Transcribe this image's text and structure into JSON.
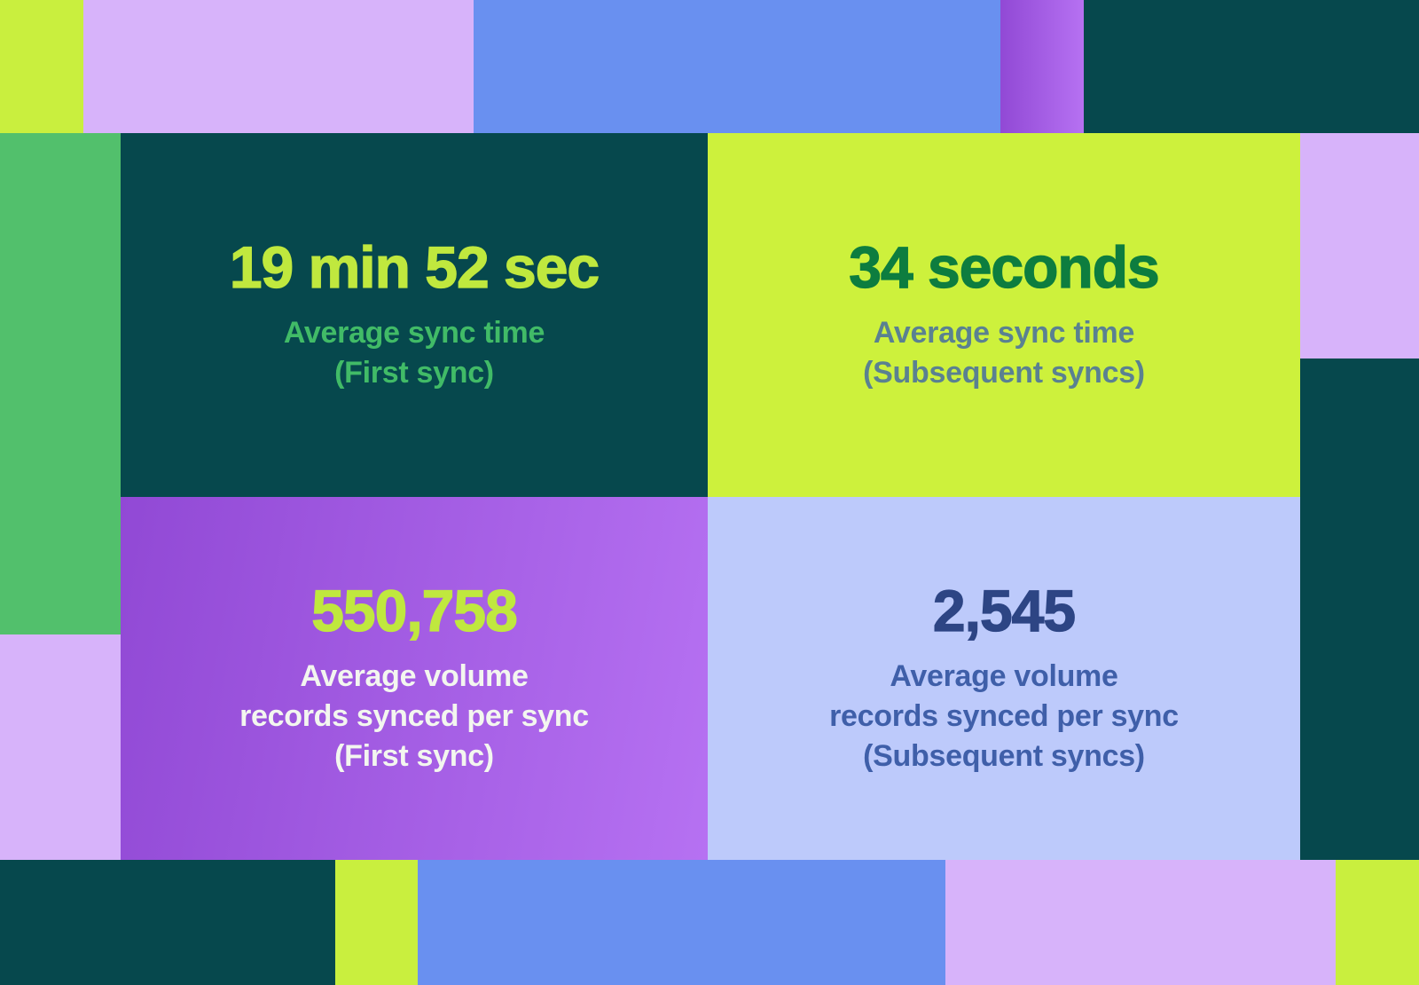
{
  "palette": {
    "lime": "#c9ef3e",
    "lime_card": "#cdf13c",
    "lavender": "#d7b3fa",
    "blue": "#6990f0",
    "dark_teal": "#06484d",
    "green": "#52c06c",
    "periwinkle": "#bdcafb",
    "purple_grad_start": "#9149d5",
    "purple_grad_end": "#b671f2",
    "value_lime": "#c0e83e",
    "value_dark_green": "#0d7d3f",
    "value_navy": "#2d4584",
    "label_green": "#41bb67",
    "label_slate": "#5a8191",
    "label_white": "#f3f6ef",
    "label_blue": "#3f5fa9"
  },
  "stats": {
    "first_sync_time": {
      "value": "19 min 52 sec",
      "label_lines": [
        "Average sync time",
        "(First sync)"
      ]
    },
    "subsequent_sync_time": {
      "value": "34 seconds",
      "label_lines": [
        "Average sync time",
        "(Subsequent syncs)"
      ]
    },
    "first_sync_volume": {
      "value": "550,758",
      "label_lines": [
        "Average volume",
        "records synced per sync",
        "(First sync)"
      ]
    },
    "subsequent_sync_volume": {
      "value": "2,545",
      "label_lines": [
        "Average volume",
        "records synced per sync",
        "(Subsequent syncs)"
      ]
    }
  },
  "chart_data": {
    "type": "table",
    "title": "",
    "rows": [
      [
        "19 min 52 sec",
        "Average sync time (First sync)"
      ],
      [
        "34 seconds",
        "Average sync time (Subsequent syncs)"
      ],
      [
        "550,758",
        "Average volume records synced per sync (First sync)"
      ],
      [
        "2,545",
        "Average volume records synced per sync (Subsequent syncs)"
      ]
    ]
  }
}
